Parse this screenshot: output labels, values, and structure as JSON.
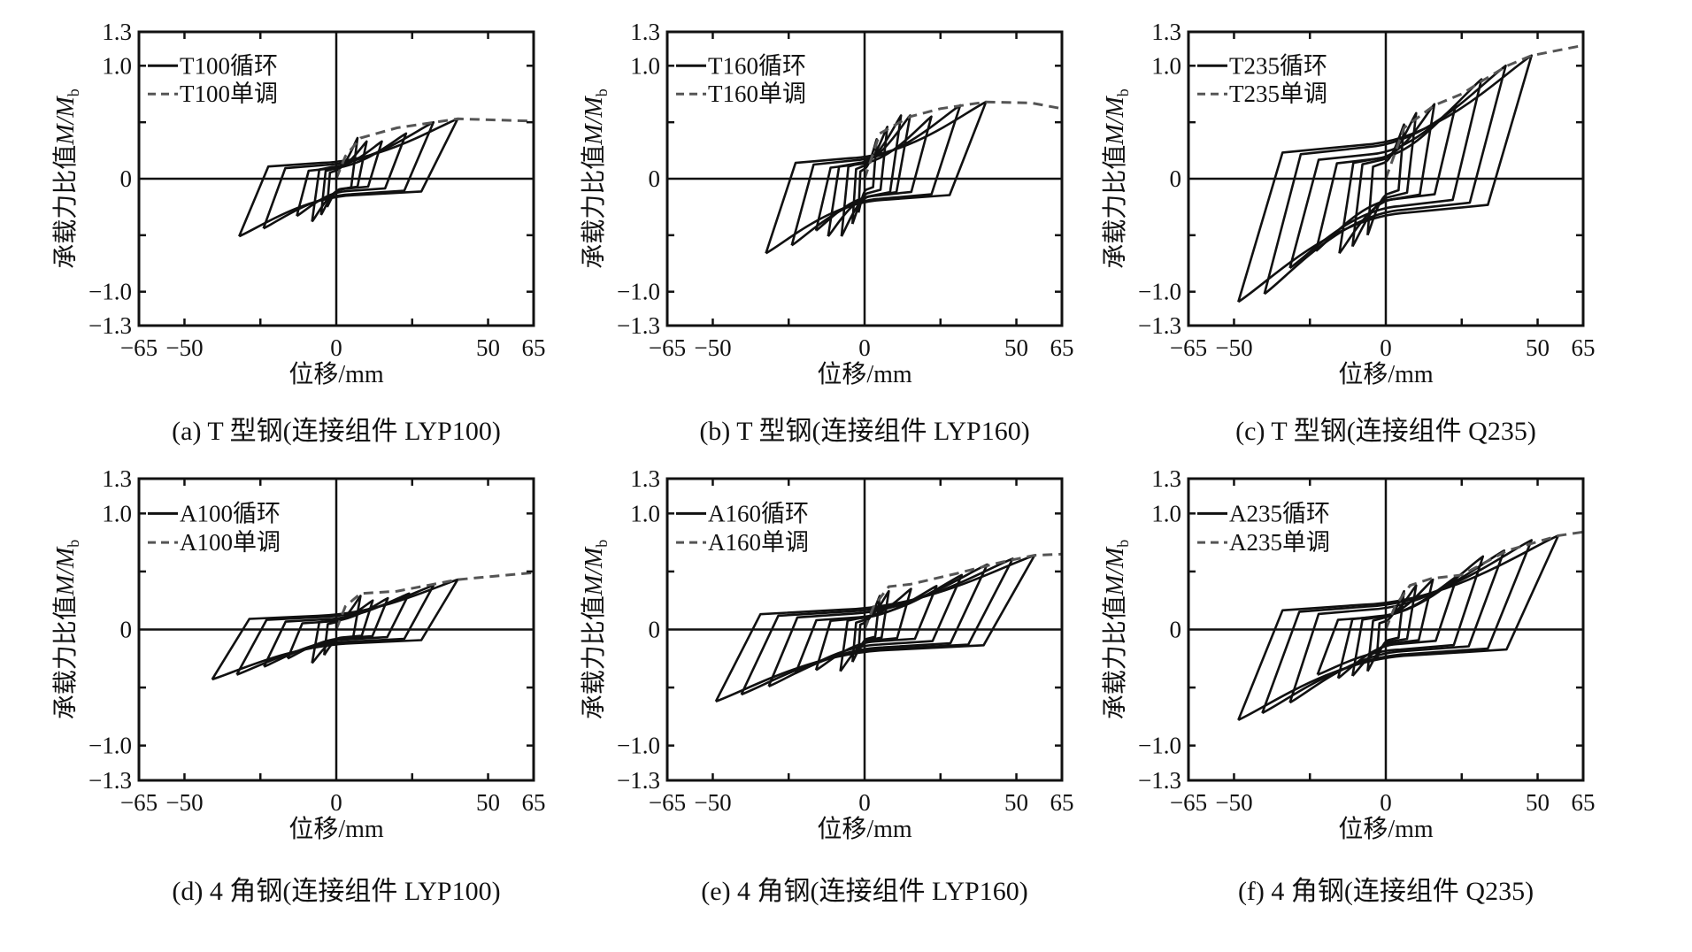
{
  "chart_data": [
    {
      "type": "line",
      "panel": "a",
      "caption": "(a) T 型钢(连接组件 LYP100)",
      "xlabel": "位移/mm",
      "ylabel": {
        "prefix": "承载力比值",
        "num": "M",
        "sep": "/",
        "den": "M",
        "sub": "b"
      },
      "xlim": [
        -65,
        65
      ],
      "ylim": [
        -1.3,
        1.3
      ],
      "xticks": {
        "values": [
          -65,
          -50,
          0,
          50,
          65
        ],
        "labels": [
          "−65",
          "−50",
          "0",
          "50",
          "65"
        ]
      },
      "yticks": {
        "values": [
          1.3,
          1.0,
          0,
          -1.0,
          -1.3
        ],
        "labels": [
          "1.3",
          "1.0",
          "0",
          "−1.0",
          "−1.3"
        ]
      },
      "legend": [
        "T100循环",
        "T100单调"
      ],
      "cyclic_peaks_note": "[max disp, max ratio, min disp, min ratio] per cycle",
      "cyclic": [
        [
          40,
          0.53,
          -32,
          -0.51
        ],
        [
          32,
          0.5,
          -24,
          -0.44
        ],
        [
          23,
          0.4,
          -13,
          -0.33
        ],
        [
          15,
          0.33,
          -8,
          -0.38
        ],
        [
          10,
          0.33,
          -5,
          -0.32
        ],
        [
          7,
          0.36,
          -3,
          -0.25
        ]
      ],
      "monotonic": [
        [
          0,
          0
        ],
        [
          3,
          0.2
        ],
        [
          8,
          0.36
        ],
        [
          20,
          0.45
        ],
        [
          40,
          0.53
        ],
        [
          65,
          0.51
        ]
      ]
    },
    {
      "type": "line",
      "panel": "b",
      "caption": "(b) T 型钢(连接组件 LYP160)",
      "xlabel": "位移/mm",
      "ylabel": {
        "prefix": "承载力比值",
        "num": "M",
        "sep": "/",
        "den": "M",
        "sub": "b"
      },
      "xlim": [
        -65,
        65
      ],
      "ylim": [
        -1.3,
        1.3
      ],
      "xticks": {
        "values": [
          -65,
          -50,
          0,
          50,
          65
        ],
        "labels": [
          "−65",
          "−50",
          "0",
          "50",
          "65"
        ]
      },
      "yticks": {
        "values": [
          1.3,
          1.0,
          0,
          -1.0,
          -1.3
        ],
        "labels": [
          "1.3",
          "1.0",
          "0",
          "−1.0",
          "−1.3"
        ]
      },
      "legend": [
        "T160循环",
        "T160单调"
      ],
      "cyclic_peaks_note": "[max disp, max ratio, min disp, min ratio] per cycle",
      "cyclic": [
        [
          40,
          0.68,
          -32.5,
          -0.66
        ],
        [
          31.5,
          0.65,
          -24,
          -0.59
        ],
        [
          22,
          0.55,
          -16,
          -0.46
        ],
        [
          15,
          0.56,
          -12,
          -0.51
        ],
        [
          12,
          0.56,
          -7.6,
          -0.51
        ],
        [
          7.5,
          0.46,
          -4,
          -0.4
        ],
        [
          4,
          0.35,
          -2,
          -0.3
        ]
      ],
      "monotonic": [
        [
          0,
          0
        ],
        [
          5,
          0.4
        ],
        [
          15,
          0.55
        ],
        [
          25,
          0.62
        ],
        [
          40,
          0.68
        ],
        [
          55,
          0.67
        ],
        [
          65,
          0.62
        ]
      ]
    },
    {
      "type": "line",
      "panel": "c",
      "caption": "(c) T 型钢(连接组件 Q235)",
      "xlabel": "位移/mm",
      "ylabel": {
        "prefix": "承载力比值",
        "num": "M",
        "sep": "/",
        "den": "M",
        "sub": "b"
      },
      "xlim": [
        -65,
        65
      ],
      "ylim": [
        -1.3,
        1.3
      ],
      "xticks": {
        "values": [
          -65,
          -50,
          0,
          50,
          65
        ],
        "labels": [
          "−65",
          "−50",
          "0",
          "50",
          "65"
        ]
      },
      "yticks": {
        "values": [
          1.3,
          1.0,
          0,
          -1.0,
          -1.3
        ],
        "labels": [
          "1.3",
          "1.0",
          "0",
          "−1.0",
          "−1.3"
        ]
      },
      "legend": [
        "T235循环",
        "T235单调"
      ],
      "cyclic_peaks_note": "[max disp, max ratio, min disp, min ratio] per cycle",
      "cyclic": [
        [
          48,
          1.09,
          -48.6,
          -1.09
        ],
        [
          39.5,
          1.0,
          -40,
          -1.02
        ],
        [
          31.5,
          0.88,
          -31.6,
          -0.79
        ],
        [
          23,
          0.65,
          -23,
          -0.64
        ],
        [
          16,
          0.66,
          -15.3,
          -0.66
        ],
        [
          10,
          0.58,
          -11,
          -0.6
        ],
        [
          6,
          0.48,
          -6,
          -0.5
        ]
      ],
      "monotonic": [
        [
          0,
          0
        ],
        [
          6,
          0.45
        ],
        [
          16,
          0.65
        ],
        [
          25,
          0.75
        ],
        [
          32,
          0.87
        ],
        [
          40,
          1.0
        ],
        [
          48,
          1.09
        ],
        [
          65,
          1.18
        ]
      ]
    },
    {
      "type": "line",
      "panel": "d",
      "caption": "(d) 4 角钢(连接组件 LYP100)",
      "xlabel": "位移/mm",
      "ylabel": {
        "prefix": "承载力比值",
        "num": "M",
        "sep": "/",
        "den": "M",
        "sub": "b"
      },
      "xlim": [
        -65,
        65
      ],
      "ylim": [
        -1.3,
        1.3
      ],
      "xticks": {
        "values": [
          -65,
          -50,
          0,
          50,
          65
        ],
        "labels": [
          "−65",
          "−50",
          "0",
          "50",
          "65"
        ]
      },
      "yticks": {
        "values": [
          1.3,
          1.0,
          0,
          -1.0,
          -1.3
        ],
        "labels": [
          "1.3",
          "1.0",
          "0",
          "−1.0",
          "−1.3"
        ]
      },
      "legend": [
        "A100循环",
        "A100单调"
      ],
      "cyclic_peaks_note": "[max disp, max ratio, min disp, min ratio] per cycle",
      "cyclic": [
        [
          40,
          0.43,
          -40.9,
          -0.43
        ],
        [
          32,
          0.38,
          -32.8,
          -0.39
        ],
        [
          24,
          0.31,
          -23.8,
          -0.32
        ],
        [
          17,
          0.27,
          -16,
          -0.25
        ],
        [
          12,
          0.25,
          -8,
          -0.29
        ],
        [
          8,
          0.29,
          -4,
          -0.22
        ]
      ],
      "monotonic": [
        [
          0,
          0
        ],
        [
          3,
          0.2
        ],
        [
          8,
          0.31
        ],
        [
          20,
          0.33
        ],
        [
          30,
          0.38
        ],
        [
          40,
          0.43
        ],
        [
          65,
          0.49
        ]
      ]
    },
    {
      "type": "line",
      "panel": "e",
      "caption": "(e) 4 角钢(连接组件 LYP160)",
      "xlabel": "位移/mm",
      "ylabel": {
        "prefix": "承载力比值",
        "num": "M",
        "sep": "/",
        "den": "M",
        "sub": "b"
      },
      "xlim": [
        -65,
        65
      ],
      "ylim": [
        -1.3,
        1.3
      ],
      "xticks": {
        "values": [
          -65,
          -50,
          0,
          50,
          65
        ],
        "labels": [
          "−65",
          "−50",
          "0",
          "50",
          "65"
        ]
      },
      "yticks": {
        "values": [
          1.3,
          1.0,
          0,
          -1.0,
          -1.3
        ],
        "labels": [
          "1.3",
          "1.0",
          "0",
          "−1.0",
          "−1.3"
        ]
      },
      "legend": [
        "A160循环",
        "A160单调"
      ],
      "cyclic_peaks_note": "[max disp, max ratio, min disp, min ratio] per cycle",
      "cyclic": [
        [
          56,
          0.64,
          -49,
          -0.62
        ],
        [
          48.8,
          0.61,
          -40.6,
          -0.56
        ],
        [
          40.4,
          0.56,
          -31.6,
          -0.49
        ],
        [
          32,
          0.47,
          -22.7,
          -0.375
        ],
        [
          23.7,
          0.375,
          -16,
          -0.35
        ],
        [
          15.3,
          0.35,
          -8,
          -0.36
        ],
        [
          8,
          0.33,
          -4,
          -0.28
        ],
        [
          5,
          0.29,
          -2,
          -0.2
        ]
      ],
      "monotonic": [
        [
          0,
          0
        ],
        [
          3,
          0.2
        ],
        [
          8,
          0.37
        ],
        [
          15,
          0.39
        ],
        [
          30,
          0.48
        ],
        [
          45,
          0.58
        ],
        [
          56,
          0.64
        ],
        [
          65,
          0.65
        ]
      ]
    },
    {
      "type": "line",
      "panel": "f",
      "caption": "(f) 4 角钢(连接组件 Q235)",
      "xlabel": "位移/mm",
      "ylabel": {
        "prefix": "承载力比值",
        "num": "M",
        "sep": "/",
        "den": "M",
        "sub": "b"
      },
      "xlim": [
        -65,
        65
      ],
      "ylim": [
        -1.3,
        1.3
      ],
      "xticks": {
        "values": [
          -65,
          -50,
          0,
          50,
          65
        ],
        "labels": [
          "−65",
          "−50",
          "0",
          "50",
          "65"
        ]
      },
      "yticks": {
        "values": [
          1.3,
          1.0,
          0,
          -1.0,
          -1.3
        ],
        "labels": [
          "1.3",
          "1.0",
          "0",
          "−1.0",
          "−1.3"
        ]
      },
      "legend": [
        "A235循环",
        "A235单调"
      ],
      "cyclic_peaks_note": "[max disp, max ratio, min disp, min ratio] per cycle",
      "cyclic": [
        [
          56.8,
          0.81,
          -48.6,
          -0.78
        ],
        [
          48,
          0.77,
          -40.7,
          -0.72
        ],
        [
          39,
          0.68,
          -31.6,
          -0.63
        ],
        [
          32,
          0.63,
          -22.5,
          -0.39
        ],
        [
          23.5,
          0.46,
          -15.7,
          -0.42
        ],
        [
          15.5,
          0.43,
          -11,
          -0.4
        ],
        [
          10,
          0.38,
          -6,
          -0.36
        ],
        [
          6,
          0.33,
          -3,
          -0.25
        ]
      ],
      "monotonic": [
        [
          0,
          0
        ],
        [
          3,
          0.2
        ],
        [
          8,
          0.38
        ],
        [
          15,
          0.44
        ],
        [
          25,
          0.47
        ],
        [
          40,
          0.68
        ],
        [
          57,
          0.81
        ],
        [
          65,
          0.84
        ]
      ]
    }
  ],
  "colors": {
    "cyclic": "#111111",
    "monotonic": "#555555",
    "axis": "#111111"
  }
}
